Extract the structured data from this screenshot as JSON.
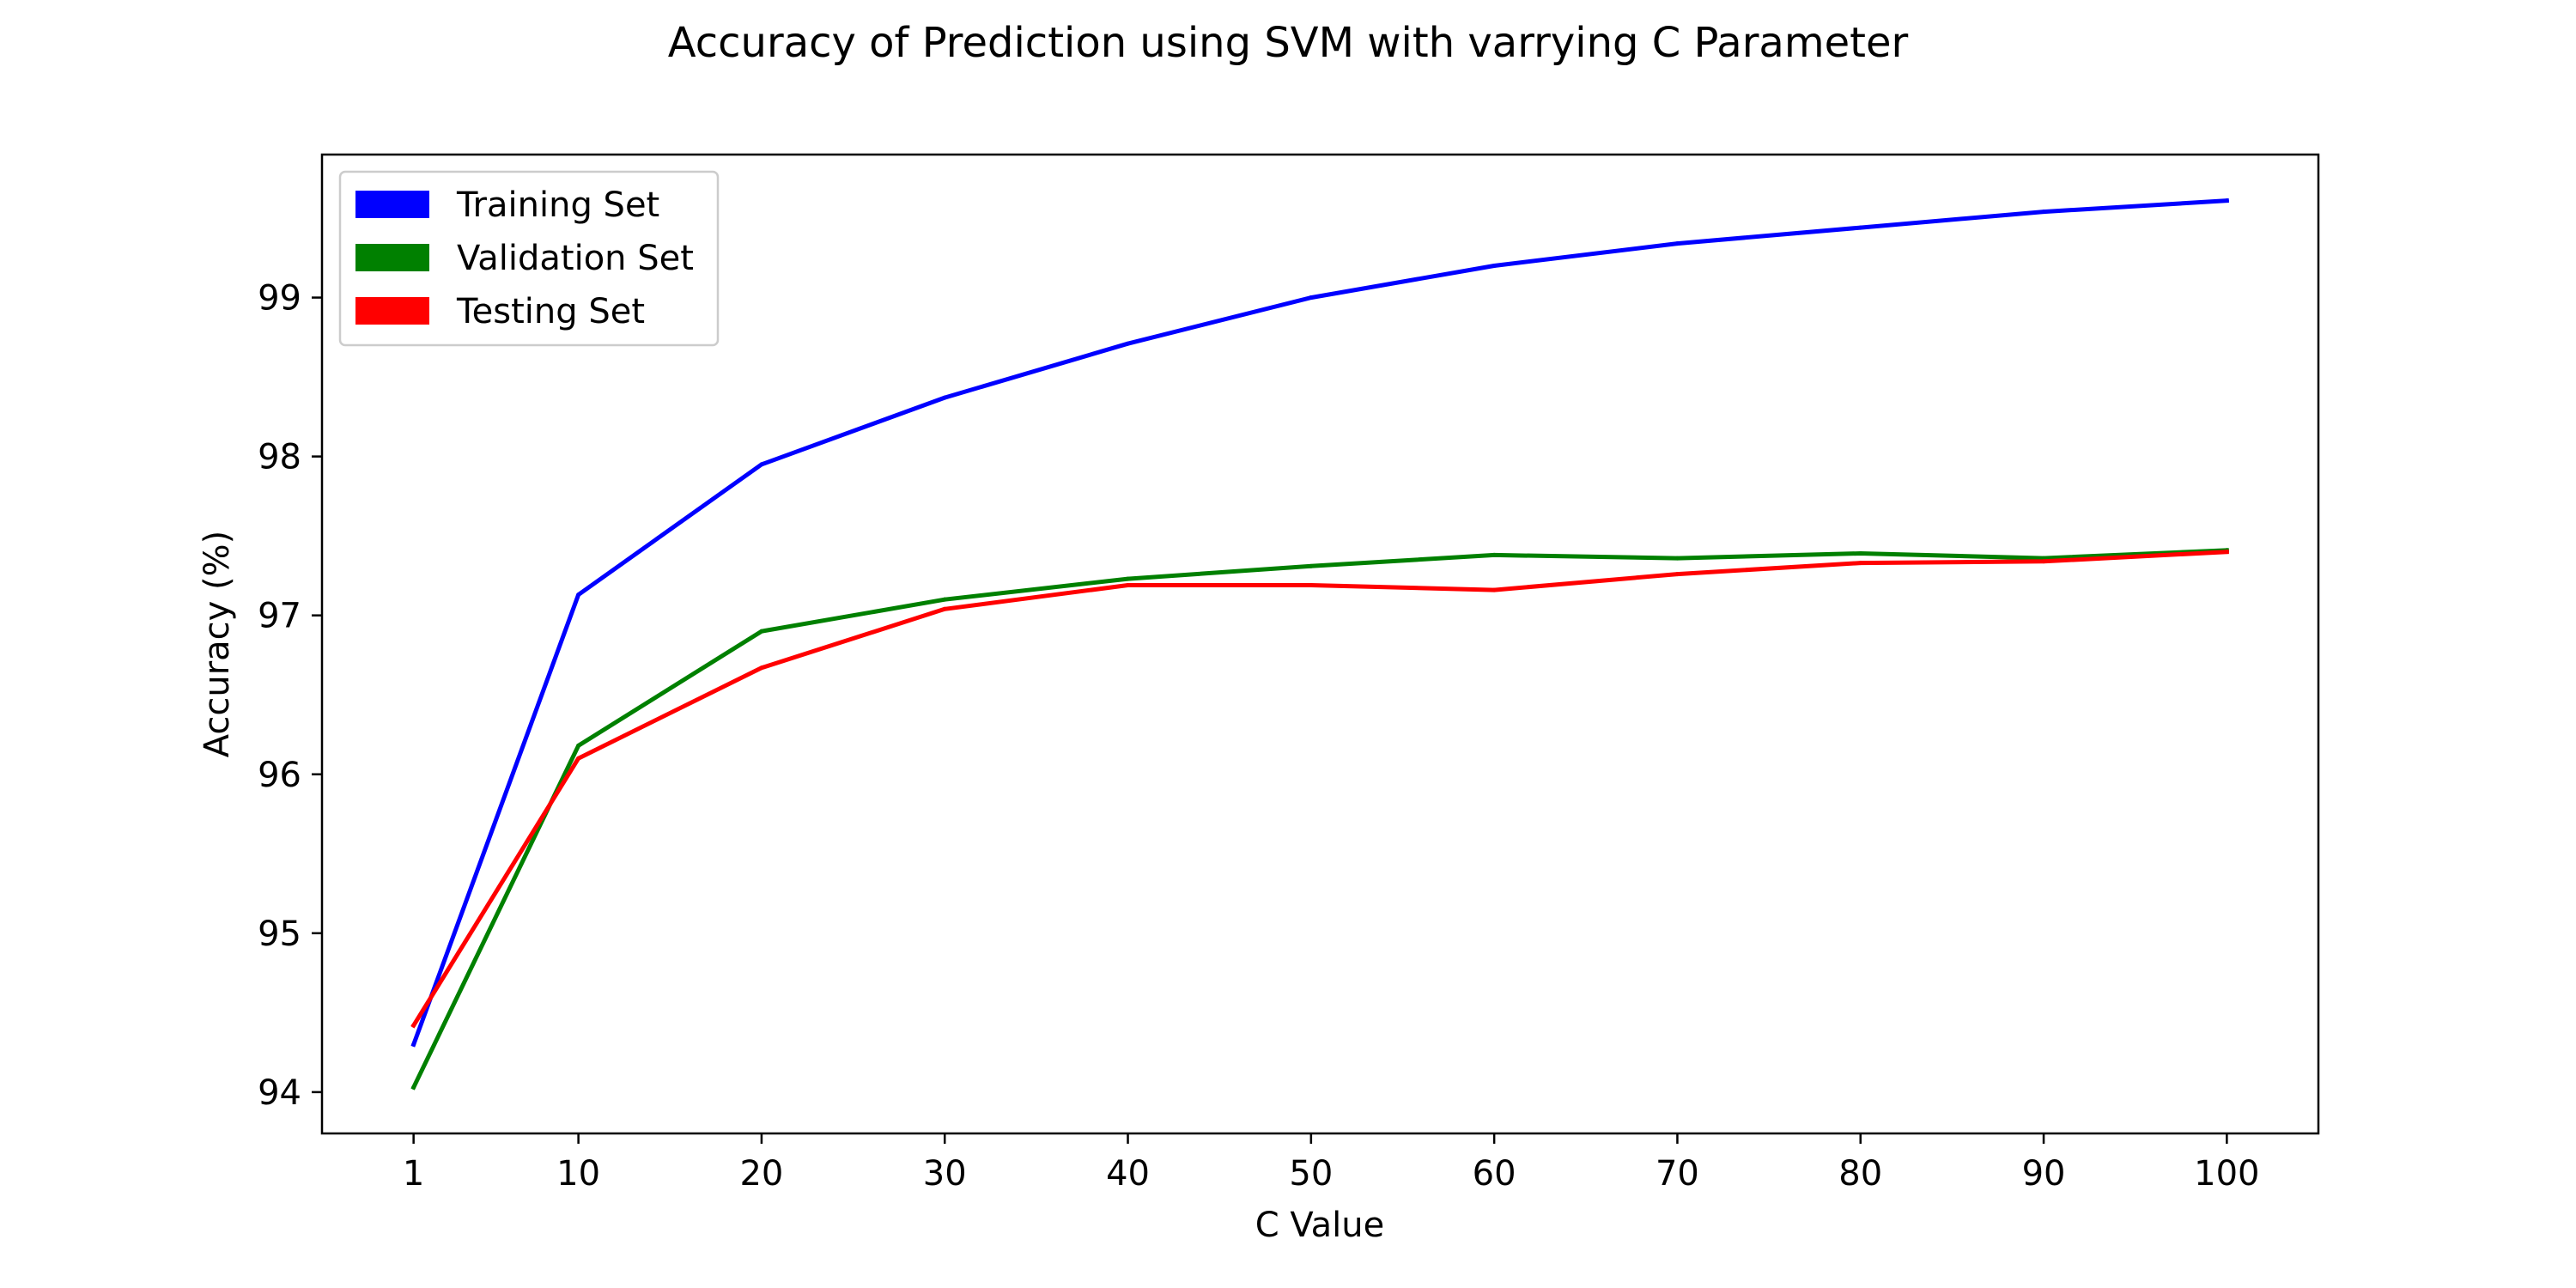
{
  "chart_data": {
    "type": "line",
    "title": "Accuracy of Prediction using SVM with varrying C Parameter",
    "xlabel": "C Value",
    "ylabel": "Accuracy (%)",
    "x": [
      1,
      10,
      20,
      30,
      40,
      50,
      60,
      70,
      80,
      90,
      100
    ],
    "x_tick_labels": [
      "1",
      "10",
      "20",
      "30",
      "40",
      "50",
      "60",
      "70",
      "80",
      "90",
      "100"
    ],
    "y_ticks": [
      94,
      95,
      96,
      97,
      98,
      99
    ],
    "y_tick_labels": [
      "94",
      "95",
      "96",
      "97",
      "98",
      "99"
    ],
    "xlim": [
      -4,
      105
    ],
    "ylim": [
      93.74,
      99.9
    ],
    "grid": false,
    "legend_position": "top-left",
    "series": [
      {
        "name": "Training Set",
        "color": "#0000ff",
        "values": [
          94.3,
          97.13,
          97.95,
          98.37,
          98.71,
          99.0,
          99.2,
          99.34,
          99.44,
          99.54,
          99.61
        ]
      },
      {
        "name": "Validation Set",
        "color": "#008000",
        "values": [
          94.03,
          96.18,
          96.9,
          97.1,
          97.23,
          97.31,
          97.38,
          97.36,
          97.39,
          97.36,
          97.41
        ]
      },
      {
        "name": "Testing Set",
        "color": "#ff0000",
        "values": [
          94.42,
          96.1,
          96.67,
          97.04,
          97.19,
          97.19,
          97.16,
          97.26,
          97.33,
          97.34,
          97.4
        ]
      }
    ]
  }
}
